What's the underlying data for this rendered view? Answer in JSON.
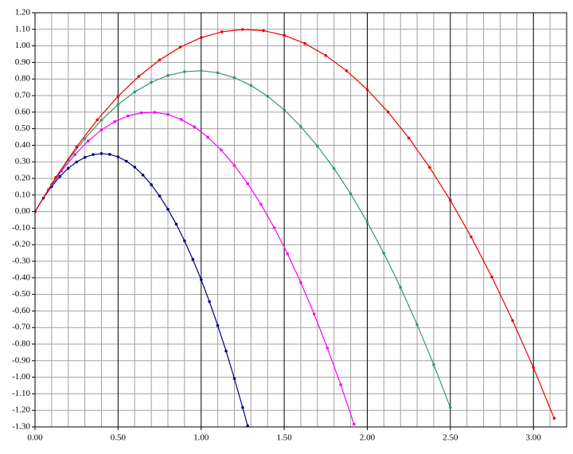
{
  "chart_data": {
    "type": "scatter-line",
    "xlim": [
      0,
      3.2
    ],
    "ylim": [
      -1.3,
      1.2
    ],
    "xticks": [
      {
        "value": 0,
        "label": "0.00"
      },
      {
        "value": 0.5,
        "label": "0.50"
      },
      {
        "value": 1,
        "label": "1.00"
      },
      {
        "value": 1.5,
        "label": "1.50"
      },
      {
        "value": 2,
        "label": "2.00"
      },
      {
        "value": 2.5,
        "label": "2.50"
      },
      {
        "value": 3,
        "label": "3.00"
      }
    ],
    "x_minor_ticks": [
      0.1,
      0.2,
      0.3,
      0.4,
      0.6,
      0.7,
      0.8,
      0.9,
      1.1,
      1.2,
      1.3,
      1.4,
      1.6,
      1.7,
      1.8,
      1.9,
      2.1,
      2.2,
      2.3,
      2.4,
      2.6,
      2.7,
      2.8,
      2.9,
      3.1
    ],
    "yticks": [
      {
        "value": 1.2,
        "label": "1.20"
      },
      {
        "value": 1.1,
        "label": "1.10"
      },
      {
        "value": 1.0,
        "label": "1.00"
      },
      {
        "value": 0.9,
        "label": "0.90"
      },
      {
        "value": 0.8,
        "label": "0.80"
      },
      {
        "value": 0.7,
        "label": "0.70"
      },
      {
        "value": 0.6,
        "label": "0.60"
      },
      {
        "value": 0.5,
        "label": "0.50"
      },
      {
        "value": 0.4,
        "label": "0.40"
      },
      {
        "value": 0.3,
        "label": "0.30"
      },
      {
        "value": 0.2,
        "label": "0.20"
      },
      {
        "value": 0.1,
        "label": "0.10"
      },
      {
        "value": 0,
        "label": "0.00"
      },
      {
        "value": -0.1,
        "label": "-0.10"
      },
      {
        "value": -0.2,
        "label": "-0.20"
      },
      {
        "value": -0.3,
        "label": "-0.30"
      },
      {
        "value": -0.4,
        "label": "-0.40"
      },
      {
        "value": -0.5,
        "label": "-0.50"
      },
      {
        "value": -0.6,
        "label": "-0.60"
      },
      {
        "value": -0.7,
        "label": "-0.70"
      },
      {
        "value": -0.8,
        "label": "-0.80"
      },
      {
        "value": -0.9,
        "label": "-0.90"
      },
      {
        "value": -1.0,
        "label": "-1.00"
      },
      {
        "value": -1.1,
        "label": "-1.10"
      },
      {
        "value": -1.2,
        "label": "-1.20"
      },
      {
        "value": -1.3,
        "label": "-1.30"
      }
    ],
    "grid": true,
    "series": [
      {
        "color": "#000080",
        "x": [
          0,
          0.05,
          0.1,
          0.15,
          0.2,
          0.25,
          0.3,
          0.35,
          0.4,
          0.45,
          0.5,
          0.55,
          0.6,
          0.65,
          0.7,
          0.75,
          0.8,
          0.85,
          0.9,
          0.95,
          1.0,
          1.05,
          1.1,
          1.15,
          1.2,
          1.25,
          1.28
        ],
        "values": [
          0,
          0.081,
          0.152,
          0.212,
          0.261,
          0.299,
          0.327,
          0.344,
          0.35,
          0.345,
          0.33,
          0.304,
          0.268,
          0.22,
          0.162,
          0.094,
          0.014,
          -0.076,
          -0.177,
          -0.289,
          -0.411,
          -0.544,
          -0.688,
          -0.842,
          -1.008,
          -1.183,
          -1.294
        ]
      },
      {
        "color": "#ff00ff",
        "x": [
          0,
          0.08,
          0.16,
          0.24,
          0.32,
          0.4,
          0.48,
          0.56,
          0.64,
          0.72,
          0.8,
          0.88,
          0.96,
          1.04,
          1.12,
          1.2,
          1.28,
          1.36,
          1.44,
          1.52,
          1.6,
          1.68,
          1.76,
          1.84,
          1.92
        ],
        "values": [
          0,
          0.131,
          0.245,
          0.344,
          0.426,
          0.493,
          0.543,
          0.578,
          0.596,
          0.599,
          0.586,
          0.556,
          0.511,
          0.449,
          0.372,
          0.278,
          0.169,
          0.044,
          -0.098,
          -0.255,
          -0.429,
          -0.618,
          -0.824,
          -1.045,
          -1.283
        ]
      },
      {
        "color": "#339966",
        "x": [
          0,
          0.1,
          0.2,
          0.3,
          0.4,
          0.5,
          0.6,
          0.7,
          0.8,
          0.9,
          1.0,
          1.1,
          1.2,
          1.3,
          1.4,
          1.5,
          1.6,
          1.7,
          1.8,
          1.9,
          2.0,
          2.1,
          2.2,
          2.3,
          2.4,
          2.5
        ],
        "values": [
          0,
          0.164,
          0.311,
          0.44,
          0.552,
          0.646,
          0.722,
          0.78,
          0.821,
          0.844,
          0.85,
          0.838,
          0.808,
          0.761,
          0.696,
          0.614,
          0.513,
          0.395,
          0.26,
          0.107,
          -0.064,
          -0.252,
          -0.458,
          -0.682,
          -0.924,
          -1.183
        ]
      },
      {
        "color": "#ee0000",
        "x": [
          0,
          0.125,
          0.25,
          0.375,
          0.5,
          0.625,
          0.75,
          0.875,
          1.0,
          1.125,
          1.25,
          1.375,
          1.5,
          1.625,
          1.75,
          1.875,
          2.0,
          2.125,
          2.25,
          2.375,
          2.5,
          2.625,
          2.75,
          2.875,
          3.0,
          3.125
        ],
        "values": [
          0,
          0.206,
          0.39,
          0.554,
          0.696,
          0.816,
          0.915,
          0.993,
          1.05,
          1.085,
          1.099,
          1.092,
          1.064,
          1.014,
          0.942,
          0.85,
          0.736,
          0.601,
          0.444,
          0.267,
          0.068,
          -0.153,
          -0.395,
          -0.658,
          -0.942,
          -1.248
        ]
      }
    ]
  }
}
